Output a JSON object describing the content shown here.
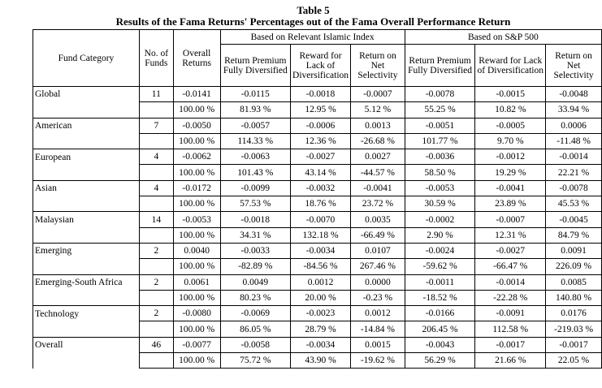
{
  "title": "Table 5",
  "subtitle": "Results of the Fama Returns' Percentages out of the Fama Overall Performance Return",
  "headers": {
    "fund_category": "Fund Category",
    "no_funds": "No. of Funds",
    "overall": "Overall Returns",
    "group1": "Based on Relevant Islamic Index",
    "group2": "Based on S&P 500",
    "return_premium": "Return Premium Fully Diversified",
    "reward": "Reward for Lack of Diversification",
    "net_selectivity": "Return on Net Selectivity"
  },
  "rows": [
    {
      "category": "Global",
      "n": "11",
      "values": [
        "-0.0141",
        "-0.0115",
        "-0.0018",
        "-0.0007",
        "-0.0078",
        "-0.0015",
        "-0.0048"
      ],
      "pct": [
        "100.00 %",
        "81.93 %",
        "12.95 %",
        "5.12 %",
        "55.25 %",
        "10.82 %",
        "33.94 %"
      ]
    },
    {
      "category": "American",
      "n": "7",
      "values": [
        "-0.0050",
        "-0.0057",
        "-0.0006",
        "0.0013",
        "-0.0051",
        "-0.0005",
        "0.0006"
      ],
      "pct": [
        "100.00 %",
        "114.33 %",
        "12.36 %",
        "-26.68 %",
        "101.77 %",
        "9.70 %",
        "-11.48 %"
      ]
    },
    {
      "category": "European",
      "n": "4",
      "values": [
        "-0.0062",
        "-0.0063",
        "-0.0027",
        "0.0027",
        "-0.0036",
        "-0.0012",
        "-0.0014"
      ],
      "pct": [
        "100.00 %",
        "101.43 %",
        "43.14 %",
        "-44.57 %",
        "58.50 %",
        "19.29 %",
        "22.21 %"
      ]
    },
    {
      "category": "Asian",
      "n": "4",
      "values": [
        "-0.0172",
        "-0.0099",
        "-0.0032",
        "-0.0041",
        "-0.0053",
        "-0.0041",
        "-0.0078"
      ],
      "pct": [
        "100.00 %",
        "57.53 %",
        "18.76 %",
        "23.72 %",
        "30.59 %",
        "23.89 %",
        "45.53 %"
      ]
    },
    {
      "category": "Malaysian",
      "n": "14",
      "values": [
        "-0.0053",
        "-0.0018",
        "-0.0070",
        "0.0035",
        "-0.0002",
        "-0.0007",
        "-0.0045"
      ],
      "pct": [
        "100.00 %",
        "34.31 %",
        "132.18 %",
        "-66.49 %",
        "2.90 %",
        "12.31 %",
        "84.79 %"
      ]
    },
    {
      "category": "Emerging",
      "n": "2",
      "values": [
        "0.0040",
        "-0.0033",
        "-0.0034",
        "0.0107",
        "-0.0024",
        "-0.0027",
        "0.0091"
      ],
      "pct": [
        "100.00 %",
        "-82.89 %",
        "-84.56 %",
        "267.46 %",
        "-59.62 %",
        "-66.47 %",
        "226.09 %"
      ]
    },
    {
      "category": "Emerging-South Africa",
      "n": "2",
      "values": [
        "0.0061",
        "0.0049",
        "0.0012",
        "0.0000",
        "-0.0011",
        "-0.0014",
        "0.0085"
      ],
      "pct": [
        "100.00 %",
        "80.23 %",
        "20.00 %",
        "-0.23 %",
        "-18.52 %",
        "-22.28 %",
        "140.80 %"
      ]
    },
    {
      "category": "Technology",
      "n": "2",
      "values": [
        "-0.0080",
        "-0.0069",
        "-0.0023",
        "0.0012",
        "-0.0166",
        "-0.0091",
        "0.0176"
      ],
      "pct": [
        "100.00 %",
        "86.05 %",
        "28.79 %",
        "-14.84 %",
        "206.45 %",
        "112.58 %",
        "-219.03 %"
      ]
    },
    {
      "category": "Overall",
      "n": "46",
      "values": [
        "-0.0077",
        "-0.0058",
        "-0.0034",
        "0.0015",
        "-0.0043",
        "-0.0017",
        "-0.0017"
      ],
      "pct": [
        "100.00 %",
        "75.72 %",
        "43.90 %",
        "-19.62 %",
        "56.29 %",
        "21.66 %",
        "22.05 %"
      ]
    }
  ]
}
